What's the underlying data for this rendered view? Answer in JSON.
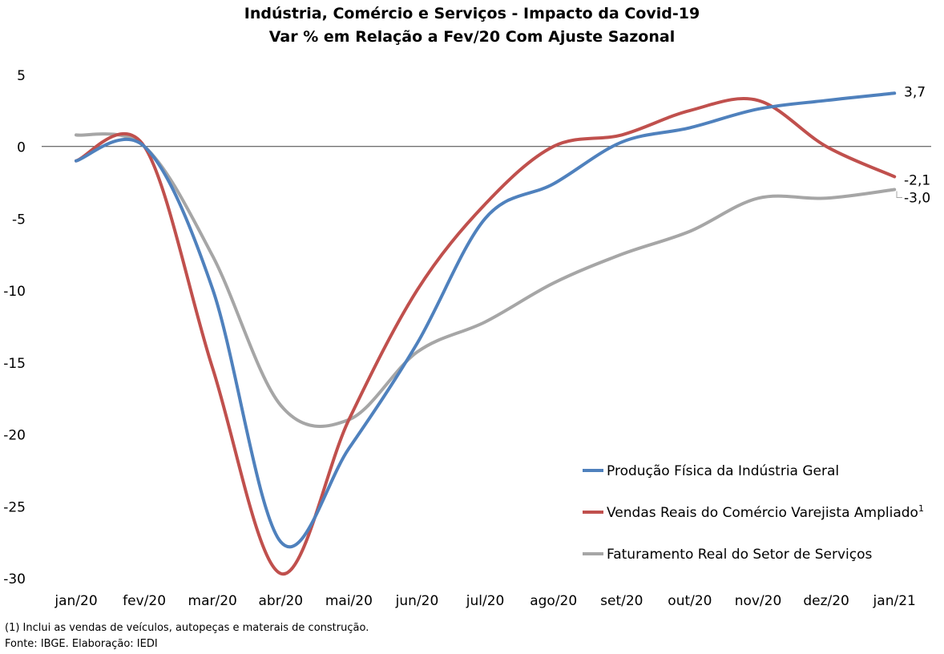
{
  "chart_data": {
    "type": "line",
    "title": "Indústria, Comércio e Serviços - Impacto  da Covid-19",
    "subtitle": "Var % em Relação a Fev/20 Com Ajuste Sazonal",
    "xlabel": "",
    "ylabel": "",
    "categories": [
      "jan/20",
      "fev/20",
      "mar/20",
      "abr/20",
      "mai/20",
      "jun/20",
      "jul/20",
      "ago/20",
      "set/20",
      "out/20",
      "nov/20",
      "dez/20",
      "jan/21"
    ],
    "ylim": [
      -30,
      5
    ],
    "yticks": [
      5,
      0,
      -5,
      -10,
      -15,
      -20,
      -25,
      -30
    ],
    "grid": false,
    "legend_position": "bottom-right",
    "series": [
      {
        "name": "Produção Física da Indústria Geral",
        "color": "#4f81bd",
        "values": [
          -1.0,
          0.0,
          -9.9,
          -27.5,
          -21.0,
          -13.7,
          -5.0,
          -2.6,
          0.3,
          1.3,
          2.6,
          3.2,
          3.7
        ],
        "end_label": "3,7"
      },
      {
        "name": "Vendas Reais do Comércio Varejista Ampliado",
        "name_superscript": "1",
        "color": "#c0504d",
        "values": [
          -1.0,
          0.0,
          -15.4,
          -29.7,
          -19.0,
          -10.0,
          -4.0,
          0.0,
          0.8,
          2.5,
          3.2,
          0.0,
          -2.1
        ],
        "end_label": "-2,1"
      },
      {
        "name": "Faturamento Real do Setor de Serviços",
        "color": "#a6a6a6",
        "values": [
          0.8,
          0.0,
          -7.6,
          -18.0,
          -19.0,
          -14.3,
          -12.2,
          -9.5,
          -7.5,
          -5.9,
          -3.6,
          -3.6,
          -3.0
        ],
        "end_label": "-3,0"
      }
    ]
  },
  "footnotes": {
    "note": "(1) Inclui as vendas de veículos, autopeças e materais de construção.",
    "source": "Fonte: IBGE. Elaboração: IEDI"
  }
}
